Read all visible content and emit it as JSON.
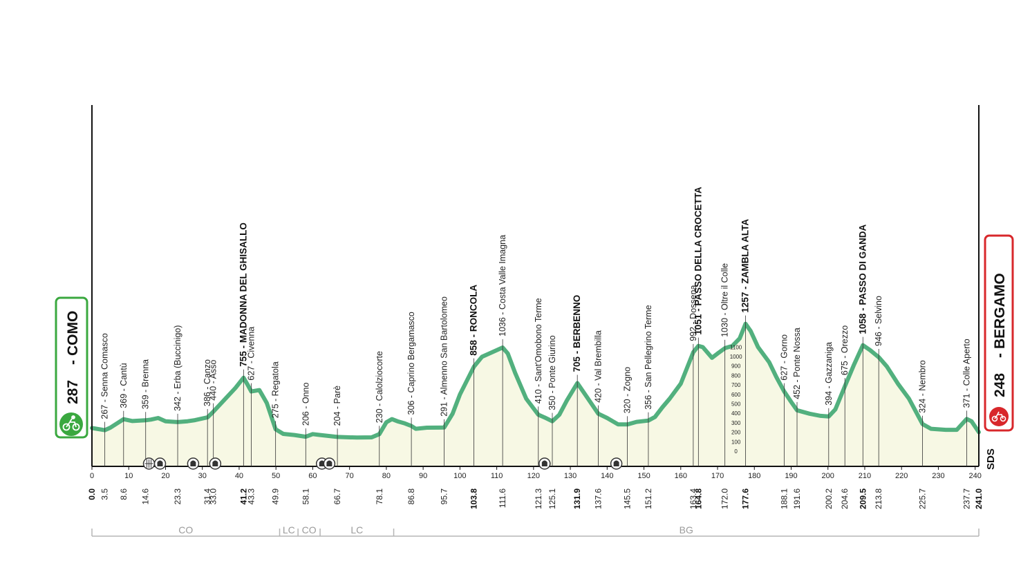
{
  "chart_data": {
    "type": "area",
    "start": {
      "elev": "287",
      "name": "COMO"
    },
    "finish": {
      "elev": "248",
      "name": "BERGAMO"
    },
    "brand": "SDS",
    "colors": {
      "profile": "#52b07e",
      "fill": "#f7f8e4",
      "start_box": "#3aa83f",
      "finish_box": "#d8272b",
      "axis": "#111111"
    },
    "xlim": [
      0,
      241
    ],
    "x_ticks": [
      "0",
      "10",
      "20",
      "30",
      "40",
      "50",
      "60",
      "70",
      "80",
      "90",
      "100",
      "110",
      "120",
      "130",
      "140",
      "150",
      "160",
      "170",
      "180",
      "190",
      "200",
      "210",
      "220",
      "230",
      "240"
    ],
    "elev_ticks": [
      "1100",
      "1000",
      "900",
      "800",
      "700",
      "600",
      "500",
      "400",
      "300",
      "200",
      "100",
      "0"
    ],
    "profile": [
      [
        0,
        287
      ],
      [
        3.5,
        267
      ],
      [
        5,
        290
      ],
      [
        8.6,
        369
      ],
      [
        11,
        352
      ],
      [
        14.6,
        359
      ],
      [
        16,
        365
      ],
      [
        18,
        380
      ],
      [
        20,
        350
      ],
      [
        23.3,
        342
      ],
      [
        26,
        350
      ],
      [
        28,
        360
      ],
      [
        31.4,
        386
      ],
      [
        33,
        440
      ],
      [
        36,
        550
      ],
      [
        39,
        660
      ],
      [
        41.2,
        755
      ],
      [
        42.3,
        690
      ],
      [
        43.3,
        627
      ],
      [
        45.5,
        640
      ],
      [
        47.5,
        520
      ],
      [
        49.9,
        275
      ],
      [
        52,
        232
      ],
      [
        55,
        222
      ],
      [
        58.1,
        206
      ],
      [
        60,
        230
      ],
      [
        62,
        222
      ],
      [
        66.7,
        204
      ],
      [
        72,
        198
      ],
      [
        76,
        200
      ],
      [
        78.1,
        230
      ],
      [
        80,
        340
      ],
      [
        81.5,
        370
      ],
      [
        83,
        350
      ],
      [
        85,
        330
      ],
      [
        86.8,
        306
      ],
      [
        88,
        280
      ],
      [
        91,
        290
      ],
      [
        95.7,
        291
      ],
      [
        98,
        420
      ],
      [
        100,
        600
      ],
      [
        103.8,
        858
      ],
      [
        106,
        950
      ],
      [
        111.6,
        1036
      ],
      [
        113,
        980
      ],
      [
        115,
        800
      ],
      [
        118,
        560
      ],
      [
        121.3,
        410
      ],
      [
        123,
        385
      ],
      [
        125.1,
        350
      ],
      [
        127,
        410
      ],
      [
        129,
        540
      ],
      [
        131.9,
        705
      ],
      [
        134,
        600
      ],
      [
        137.6,
        420
      ],
      [
        140,
        380
      ],
      [
        143,
        320
      ],
      [
        145.5,
        320
      ],
      [
        148,
        344
      ],
      [
        151.2,
        356
      ],
      [
        153,
        390
      ],
      [
        155,
        480
      ],
      [
        157,
        560
      ],
      [
        160,
        700
      ],
      [
        163.4,
        992
      ],
      [
        164.8,
        1051
      ],
      [
        166,
        1040
      ],
      [
        168.5,
        940
      ],
      [
        170,
        980
      ],
      [
        172,
        1030
      ],
      [
        174,
        1050
      ],
      [
        176,
        1120
      ],
      [
        177.6,
        1257
      ],
      [
        179,
        1190
      ],
      [
        181,
        1040
      ],
      [
        184,
        900
      ],
      [
        186,
        760
      ],
      [
        188.1,
        627
      ],
      [
        190,
        530
      ],
      [
        191.6,
        452
      ],
      [
        195,
        420
      ],
      [
        198,
        400
      ],
      [
        200.2,
        394
      ],
      [
        202,
        460
      ],
      [
        204.6,
        675
      ],
      [
        207,
        870
      ],
      [
        209.5,
        1058
      ],
      [
        211.5,
        1010
      ],
      [
        213.8,
        946
      ],
      [
        216,
        860
      ],
      [
        219,
        700
      ],
      [
        222,
        560
      ],
      [
        225.7,
        324
      ],
      [
        228,
        280
      ],
      [
        232,
        270
      ],
      [
        235,
        270
      ],
      [
        237.7,
        371
      ],
      [
        239,
        350
      ],
      [
        241,
        248
      ]
    ],
    "km_markers": [
      {
        "elev": "267",
        "name": "Senna Comasco",
        "km": "3.5",
        "pos": 3.5
      },
      {
        "elev": "369",
        "name": "Cantù",
        "km": "8.6",
        "pos": 8.6
      },
      {
        "elev": "359",
        "name": "Brenna",
        "km": "14.6",
        "pos": 14.6
      },
      {
        "elev": "342",
        "name": "Erba (Buccinigo)",
        "km": "23.3",
        "pos": 23.3
      },
      {
        "elev": "386",
        "name": "Canzo",
        "km": "31.4",
        "pos": 31.4
      },
      {
        "elev": "440",
        "name": "Asso",
        "km": "33.0",
        "pos": 33.0
      },
      {
        "elev": "755",
        "name": "MADONNA DEL GHISALLO",
        "km": "41.2",
        "pos": 41.2,
        "main": true
      },
      {
        "elev": "627",
        "name": "Civenna",
        "km": "43.3",
        "pos": 43.3
      },
      {
        "elev": "275",
        "name": "Regatola",
        "km": "49.9",
        "pos": 49.9
      },
      {
        "elev": "206",
        "name": "Onno",
        "km": "58.1",
        "pos": 58.1
      },
      {
        "elev": "204",
        "name": "Parè",
        "km": "66.7",
        "pos": 66.7
      },
      {
        "elev": "230",
        "name": "Calolziocorte",
        "km": "78.1",
        "pos": 78.1
      },
      {
        "elev": "306",
        "name": "Caprino Bergamasco",
        "km": "86.8",
        "pos": 86.8
      },
      {
        "elev": "291",
        "name": "Almenno San Bartolomeo",
        "km": "95.7",
        "pos": 95.7
      },
      {
        "elev": "858",
        "name": "RONCOLA",
        "km": "103.8",
        "pos": 103.8,
        "main": true
      },
      {
        "elev": "1036",
        "name": "Costa Valle Imagna",
        "km": "111.6",
        "pos": 111.6
      },
      {
        "elev": "410",
        "name": "Sant'Omobono Terme",
        "km": "121.3",
        "pos": 121.3
      },
      {
        "elev": "350",
        "name": "Ponte Giurino",
        "km": "125.1",
        "pos": 125.1
      },
      {
        "elev": "705",
        "name": "BERBENNO",
        "km": "131.9",
        "pos": 131.9,
        "main": true
      },
      {
        "elev": "420",
        "name": "Val Brembilla",
        "km": "137.6",
        "pos": 137.6
      },
      {
        "elev": "320",
        "name": "Zogno",
        "km": "145.5",
        "pos": 145.5
      },
      {
        "elev": "356",
        "name": "San Pellegrino Terme",
        "km": "151.2",
        "pos": 151.2
      },
      {
        "elev": "992",
        "name": "Dossena",
        "km": "163.4",
        "pos": 163.4
      },
      {
        "elev": "1051",
        "name": "PASSO DELLA CROCETTA",
        "km": "164.8",
        "pos": 164.8,
        "main": true
      },
      {
        "elev": "1030",
        "name": "Oltre il Colle",
        "km": "172.0",
        "pos": 172.0
      },
      {
        "elev": "1257",
        "name": "ZAMBLA ALTA",
        "km": "177.6",
        "pos": 177.6,
        "main": true
      },
      {
        "elev": "627",
        "name": "Gorno",
        "km": "188.1",
        "pos": 188.1
      },
      {
        "elev": "452",
        "name": "Ponte Nossa",
        "km": "191.6",
        "pos": 191.6
      },
      {
        "elev": "394",
        "name": "Gazzaniga",
        "km": "200.2",
        "pos": 200.2
      },
      {
        "elev": "675",
        "name": "Orezzo",
        "km": "204.6",
        "pos": 204.6
      },
      {
        "elev": "1058",
        "name": "PASSO DI GANDA",
        "km": "209.5",
        "pos": 209.5,
        "main": true
      },
      {
        "elev": "946",
        "name": "Selvino",
        "km": "213.8",
        "pos": 213.8
      },
      {
        "elev": "324",
        "name": "Nembro",
        "km": "225.7",
        "pos": 225.7
      },
      {
        "elev": "371",
        "name": "Colle Aperto",
        "km": "237.7",
        "pos": 237.7
      }
    ],
    "start_km": "0.0",
    "finish_km": "241.0",
    "provinces": [
      {
        "code": "CO",
        "from": 0,
        "to": 51
      },
      {
        "code": "LC",
        "from": 51,
        "to": 56
      },
      {
        "code": "CO",
        "from": 56,
        "to": 62
      },
      {
        "code": "LC",
        "from": 62,
        "to": 82
      },
      {
        "code": "BG",
        "from": 82,
        "to": 241
      }
    ],
    "course_icons": [
      {
        "kind": "railway-crossing",
        "km": 15.5
      },
      {
        "kind": "tunnel",
        "km": 18.5
      },
      {
        "kind": "tunnel",
        "km": 27.5
      },
      {
        "kind": "tunnel",
        "km": 33.5
      },
      {
        "kind": "tunnel",
        "km": 62.5
      },
      {
        "kind": "tunnel",
        "km": 64.5
      },
      {
        "kind": "tunnel",
        "km": 123.0
      },
      {
        "kind": "tunnel",
        "km": 142.5
      }
    ]
  }
}
